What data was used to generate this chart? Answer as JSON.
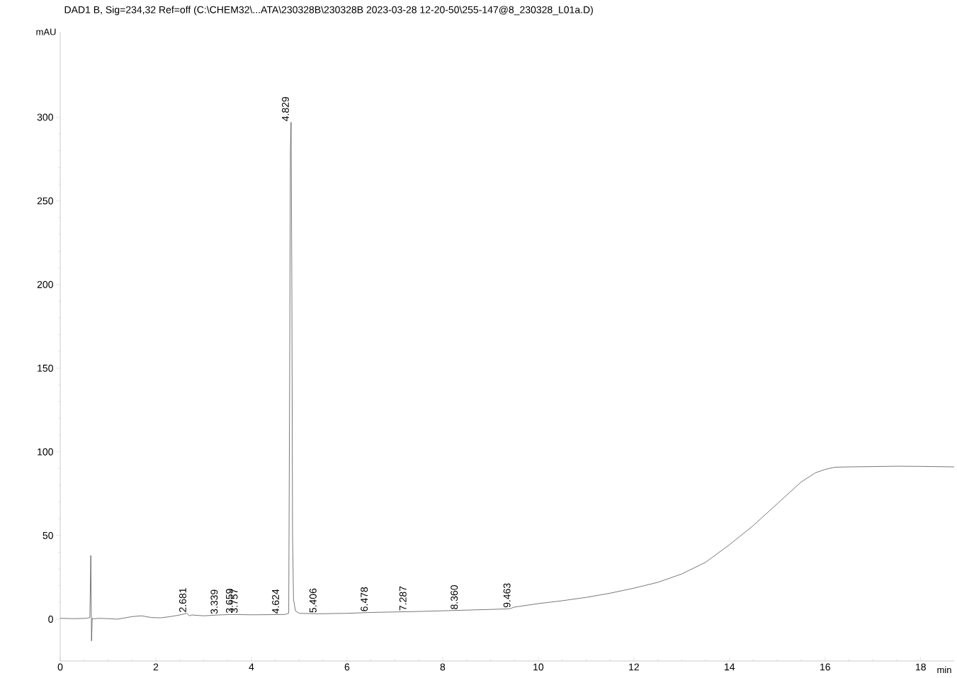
{
  "chart_data": {
    "type": "line",
    "title": "DAD1 B, Sig=234,32 Ref=off (C:\\CHEM32\\...ATA\\230328B\\230328B 2023-03-28 12-20-50\\255-147@8_230328_L01a.D)",
    "xlabel": "min",
    "ylabel": "mAU",
    "x": [
      0.0,
      0.3,
      0.55,
      0.62,
      0.64,
      0.655,
      0.67,
      0.7,
      0.8,
      1.0,
      1.2,
      1.5,
      1.7,
      1.9,
      2.1,
      2.3,
      2.5,
      2.65,
      2.7,
      2.75,
      3.0,
      3.3,
      3.6,
      4.0,
      4.4,
      4.7,
      4.78,
      4.8,
      4.815,
      4.829,
      4.845,
      4.86,
      4.88,
      4.92,
      5.0,
      5.4,
      6.0,
      6.5,
      7.0,
      7.5,
      8.0,
      8.5,
      9.0,
      9.4,
      9.5,
      10.0,
      10.5,
      11.0,
      11.5,
      12.0,
      12.5,
      13.0,
      13.5,
      14.0,
      14.5,
      15.0,
      15.5,
      15.8,
      16.0,
      16.2,
      16.5,
      17.0,
      17.5,
      18.0,
      18.7
    ],
    "values": [
      0.5,
      0.3,
      0.5,
      1.0,
      38,
      -13,
      0.5,
      0.2,
      0.5,
      0.3,
      0.0,
      1.5,
      2.0,
      1.0,
      0.8,
      1.5,
      2.5,
      3.5,
      2.0,
      2.5,
      2.0,
      2.5,
      2.8,
      2.6,
      2.7,
      2.8,
      3.5,
      150,
      280,
      297,
      200,
      50,
      12,
      5,
      3.5,
      3.2,
      3.5,
      4.0,
      4.3,
      4.6,
      5.0,
      5.4,
      5.8,
      6.2,
      7.2,
      9.3,
      11,
      13,
      15.5,
      18.5,
      22,
      27,
      34,
      44.5,
      56,
      69,
      82,
      87.5,
      89.5,
      90.8,
      91,
      91.2,
      91.4,
      91.3,
      91
    ],
    "color": "#555555",
    "line_style": "solid",
    "marker": "none",
    "xlim": [
      0,
      18.7
    ],
    "ylim": [
      -25,
      351
    ],
    "xticks": [
      0,
      2,
      4,
      6,
      8,
      10,
      12,
      14,
      16,
      18
    ],
    "yticks": [
      0,
      50,
      100,
      150,
      200,
      250,
      300
    ],
    "annotations": [
      {
        "text": "2.681",
        "x": 2.681,
        "y": 3.5
      },
      {
        "text": "3.339",
        "x": 3.339,
        "y": 2.5
      },
      {
        "text": "3.659",
        "x": 3.659,
        "y": 3
      },
      {
        "text": "3.757",
        "x": 3.757,
        "y": 3
      },
      {
        "text": "4.624",
        "x": 4.624,
        "y": 2.7
      },
      {
        "text": "4.829",
        "x": 4.829,
        "y": 297
      },
      {
        "text": "5.406",
        "x": 5.406,
        "y": 3.2
      },
      {
        "text": "6.478",
        "x": 6.478,
        "y": 4
      },
      {
        "text": "7.287",
        "x": 7.287,
        "y": 4.5
      },
      {
        "text": "8.360",
        "x": 8.36,
        "y": 5.2
      },
      {
        "text": "9.463",
        "x": 9.463,
        "y": 6.3
      }
    ]
  }
}
